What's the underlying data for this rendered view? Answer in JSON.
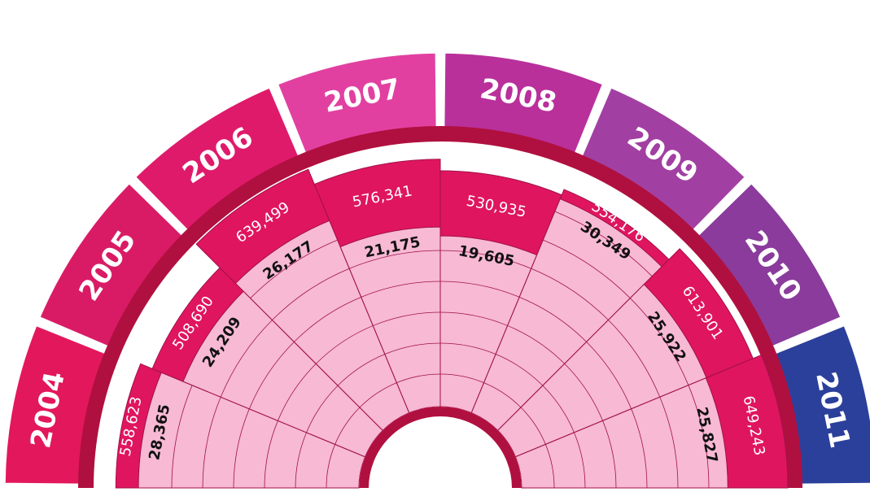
{
  "chart_data": {
    "type": "radial-bar",
    "categories": [
      "2004",
      "2005",
      "2006",
      "2007",
      "2008",
      "2009",
      "2010",
      "2011"
    ],
    "category_colors": [
      "#e3175c",
      "#d91b66",
      "#df1a6b",
      "#e240a1",
      "#b9309b",
      "#a23fa2",
      "#8a3b9c",
      "#2b409b"
    ],
    "series": [
      {
        "color": "#e0155f",
        "values": [
          558623,
          508690,
          639499,
          576341,
          530935,
          554176,
          613901,
          649243
        ],
        "value_labels": [
          "558,623",
          "508,690",
          "639,499",
          "576,341",
          "530,935",
          "554,176",
          "613,901",
          "649,243"
        ]
      },
      {
        "color": "#f7b9d4",
        "values": [
          28365,
          24209,
          26177,
          21175,
          19605,
          30349,
          25922,
          25827
        ],
        "value_labels": [
          "28,365",
          "24,209",
          "26,177",
          "21,175",
          "19,605",
          "30,349",
          "25,922",
          "25,827"
        ]
      }
    ]
  }
}
